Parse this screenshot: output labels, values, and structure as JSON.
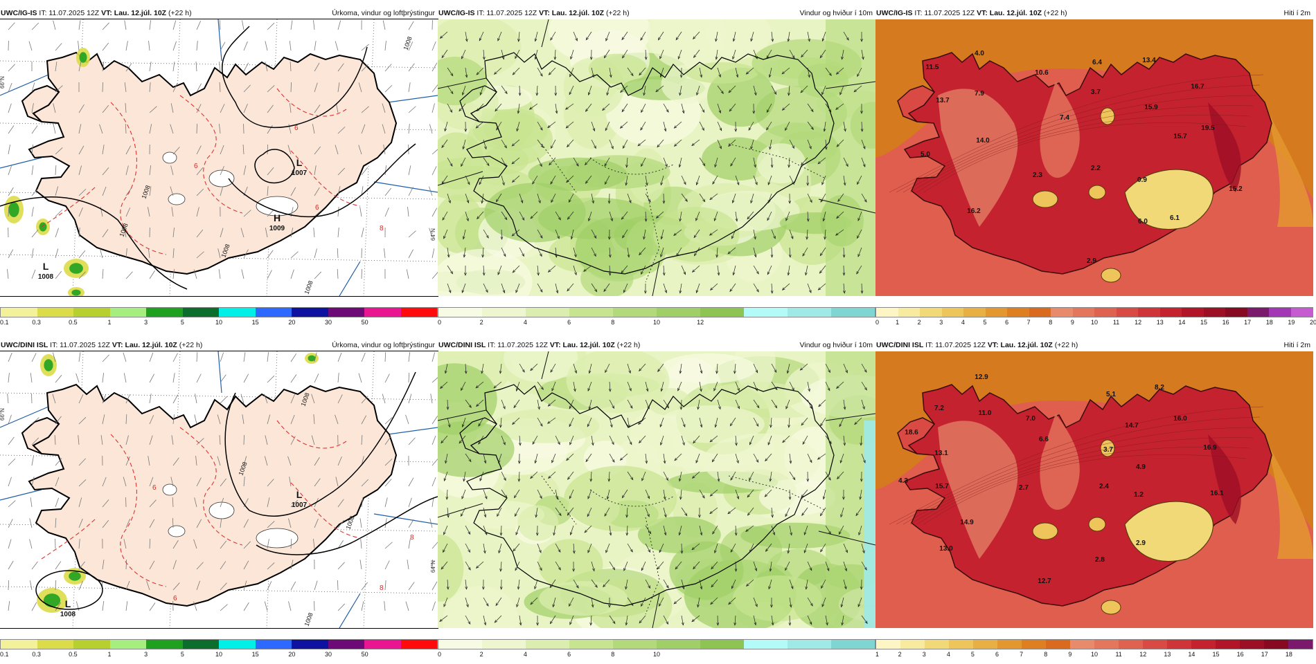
{
  "panels": [
    {
      "model": "UWC/IG-IS",
      "it": "IT: 11.07.2025 12Z",
      "vt": "VT: Lau. 12.júl. 10Z",
      "lead": "(+22 h)",
      "title": "Úrkoma, vindur og loftþrýstingur",
      "kind": "precip",
      "pressure_labels": [
        {
          "letter": "L",
          "value": "1007"
        },
        {
          "letter": "H",
          "value": "1009"
        },
        {
          "letter": "L",
          "value": "1008"
        }
      ],
      "isobar_labels": [
        "1008",
        "1008",
        "1008",
        "1008",
        "1008"
      ],
      "temp_labels": [
        "6",
        "6",
        "6",
        "8"
      ],
      "lat_labels": [
        "66°N",
        "64°N"
      ],
      "scale": {
        "colors": [
          "#f3f19a",
          "#dcdc4a",
          "#b7cf2f",
          "#a6ef7e",
          "#1fa11f",
          "#0b6e2d",
          "#00f0e8",
          "#2d69ff",
          "#0f11a0",
          "#6e0a78",
          "#ea1591",
          "#ff0b0b"
        ],
        "ticks": [
          "0.1",
          "0.3",
          "0.5",
          "1",
          "3",
          "5",
          "10",
          "15",
          "20",
          "30",
          "50"
        ]
      }
    },
    {
      "model": "UWC/IG-IS",
      "it": "IT: 11.07.2025 12Z",
      "vt": "VT: Lau. 12.júl. 10Z",
      "lead": "(+22 h)",
      "title": "Vindur og hviður í 10m",
      "kind": "wind",
      "scale": {
        "colors": [
          "#f8fbe3",
          "#eef6cf",
          "#dbeeaf",
          "#c7e490",
          "#b2d97a",
          "#9fcf66",
          "#8ec453",
          "#b2fbf8",
          "#9fe9e8",
          "#7fd5d2"
        ],
        "ticks": [
          "0",
          "2",
          "4",
          "6",
          "8",
          "10",
          "12"
        ]
      }
    },
    {
      "model": "UWC/IG-IS",
      "it": "IT: 11.07.2025 12Z",
      "vt": "VT: Lau. 12.júl. 10Z",
      "lead": "(+22 h)",
      "title": "Hiti í 2m",
      "kind": "temp",
      "values": [
        "4.0",
        "11.5",
        "13.7",
        "7.9",
        "10.6",
        "6.4",
        "13.4",
        "3.7",
        "16.7",
        "15.9",
        "7.4",
        "14.0",
        "15.7",
        "19.5",
        "5.0",
        "2.3",
        "2.2",
        "0.9",
        "15.2",
        "16.2",
        "6.0",
        "6.1",
        "2.9"
      ],
      "scale": {
        "colors": [
          "#fdf6c4",
          "#f8ea9e",
          "#f2d978",
          "#edc55a",
          "#e8b044",
          "#e3982f",
          "#de7f22",
          "#d96a1e",
          "#e88a6c",
          "#e5765e",
          "#df6150",
          "#d84a43",
          "#cf3538",
          "#c4222f",
          "#b21528",
          "#9d0f25",
          "#870a22",
          "#7b1a6d",
          "#a336b4",
          "#c65ad1"
        ],
        "ticks": [
          "0",
          "1",
          "2",
          "3",
          "4",
          "5",
          "6",
          "7",
          "8",
          "9",
          "10",
          "11",
          "12",
          "13",
          "14",
          "15",
          "16",
          "17",
          "18",
          "19",
          "20"
        ]
      }
    },
    {
      "model": "UWC/DINI ISL",
      "it": "IT: 11.07.2025 12Z",
      "vt": "VT: Lau. 12.júl. 10Z",
      "lead": "(+22 h)",
      "title": "Úrkoma, vindur og loftþrýstingur",
      "kind": "precip",
      "pressure_labels": [
        {
          "letter": "L",
          "value": "1007"
        },
        {
          "letter": "L",
          "value": "1008"
        }
      ],
      "isobar_labels": [
        "1008",
        "1008",
        "1008",
        "1008"
      ],
      "temp_labels": [
        "6",
        "6",
        "8",
        "8"
      ],
      "lat_labels": [
        "66°N",
        "64°N"
      ],
      "scale": {
        "colors": [
          "#f3f19a",
          "#dcdc4a",
          "#b7cf2f",
          "#a6ef7e",
          "#1fa11f",
          "#0b6e2d",
          "#00f0e8",
          "#2d69ff",
          "#0f11a0",
          "#6e0a78",
          "#ea1591",
          "#ff0b0b"
        ],
        "ticks": [
          "0.1",
          "0.3",
          "0.5",
          "1",
          "3",
          "5",
          "10",
          "15",
          "20",
          "30",
          "50"
        ]
      }
    },
    {
      "model": "UWC/DINI ISL",
      "it": "IT: 11.07.2025 12Z",
      "vt": "VT: Lau. 12.júl. 10Z",
      "lead": "(+22 h)",
      "title": "Vindur og hviður í 10m",
      "kind": "wind",
      "scale": {
        "colors": [
          "#f8fbe3",
          "#eef6cf",
          "#dbeeaf",
          "#c7e490",
          "#b2d97a",
          "#9fcf66",
          "#8ec453",
          "#b2fbf8",
          "#9fe9e8",
          "#7fd5d2"
        ],
        "ticks": [
          "0",
          "2",
          "4",
          "6",
          "8",
          "10"
        ]
      }
    },
    {
      "model": "UWC/DINI ISL",
      "it": "IT: 11.07.2025 12Z",
      "vt": "VT: Lau. 12.júl. 10Z",
      "lead": "(+22 h)",
      "title": "Hiti í 2m",
      "kind": "temp",
      "values": [
        "12.9",
        "8.2",
        "7.2",
        "11.0",
        "5.1",
        "7.0",
        "18.6",
        "6.6",
        "14.7",
        "16.0",
        "13.1",
        "3.7",
        "16.9",
        "4.3",
        "4.9",
        "15.7",
        "2.7",
        "2.4",
        "1.2",
        "16.1",
        "14.9",
        "13.0",
        "2.9",
        "2.8",
        "12.7"
      ],
      "scale": {
        "colors": [
          "#fdf6c4",
          "#f8ea9e",
          "#f2d978",
          "#edc55a",
          "#e8b044",
          "#e3982f",
          "#de7f22",
          "#d96a1e",
          "#e88a6c",
          "#e5765e",
          "#df6150",
          "#d84a43",
          "#cf3538",
          "#c4222f",
          "#b21528",
          "#9d0f25",
          "#870a22",
          "#7b1a6d"
        ],
        "ticks": [
          "1",
          "2",
          "3",
          "4",
          "5",
          "6",
          "7",
          "8",
          "9",
          "10",
          "11",
          "12",
          "13",
          "14",
          "15",
          "16",
          "17",
          "18"
        ]
      }
    }
  ]
}
